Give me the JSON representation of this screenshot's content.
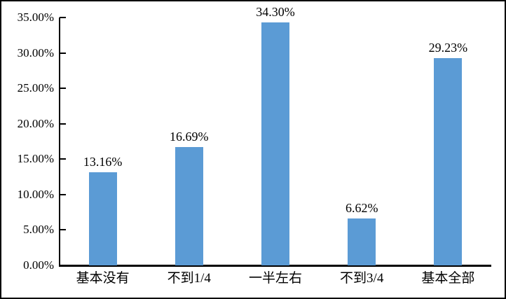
{
  "chart_data": {
    "type": "bar",
    "title": "",
    "xlabel": "",
    "ylabel": "",
    "categories": [
      "基本没有",
      "不到1/4",
      "一半左右",
      "不到3/4",
      "基本全部"
    ],
    "values": [
      13.16,
      16.69,
      34.3,
      6.62,
      29.23
    ],
    "value_labels": [
      "13.16%",
      "16.69%",
      "34.30%",
      "6.62%",
      "29.23%"
    ],
    "ylim": [
      0,
      35
    ],
    "y_tick_interval": 5,
    "y_tick_labels": [
      "0.00%",
      "5.00%",
      "10.00%",
      "15.00%",
      "20.00%",
      "25.00%",
      "30.00%",
      "35.00%"
    ],
    "grid": false,
    "legend": false,
    "colors": {
      "bar": "#5B9BD5",
      "axis": "#000000",
      "text": "#000000",
      "background": "#FFFFFF",
      "frame_border": "#000000"
    }
  }
}
